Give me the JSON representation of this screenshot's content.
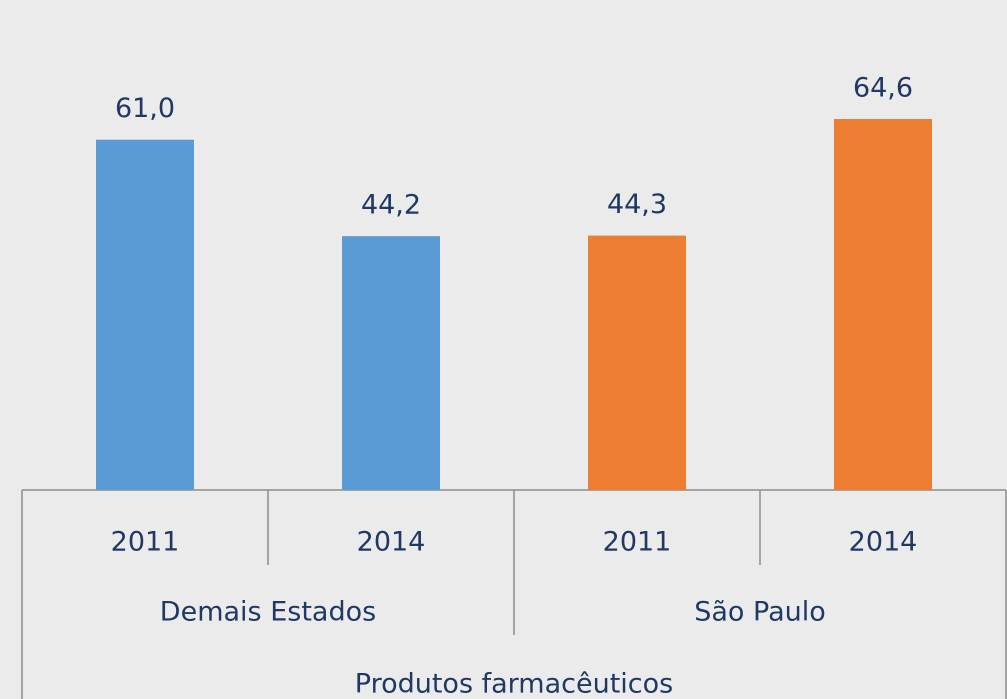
{
  "chart_data": {
    "type": "bar",
    "categories": [
      "2011",
      "2014",
      "2011",
      "2014"
    ],
    "super_category": "Produtos farmacêuticos",
    "series": [
      {
        "name": "Demais Estados",
        "color": "#5b9bd5",
        "values": [
          61.0,
          44.2,
          null,
          null
        ],
        "value_labels": [
          "61,0",
          "44,2",
          null,
          null
        ]
      },
      {
        "name": "São Paulo",
        "color": "#ed7d31",
        "values": [
          null,
          null,
          44.3,
          64.6
        ],
        "value_labels": [
          null,
          null,
          "44,3",
          "64,6"
        ]
      }
    ],
    "ylim": [
      0,
      70
    ]
  }
}
